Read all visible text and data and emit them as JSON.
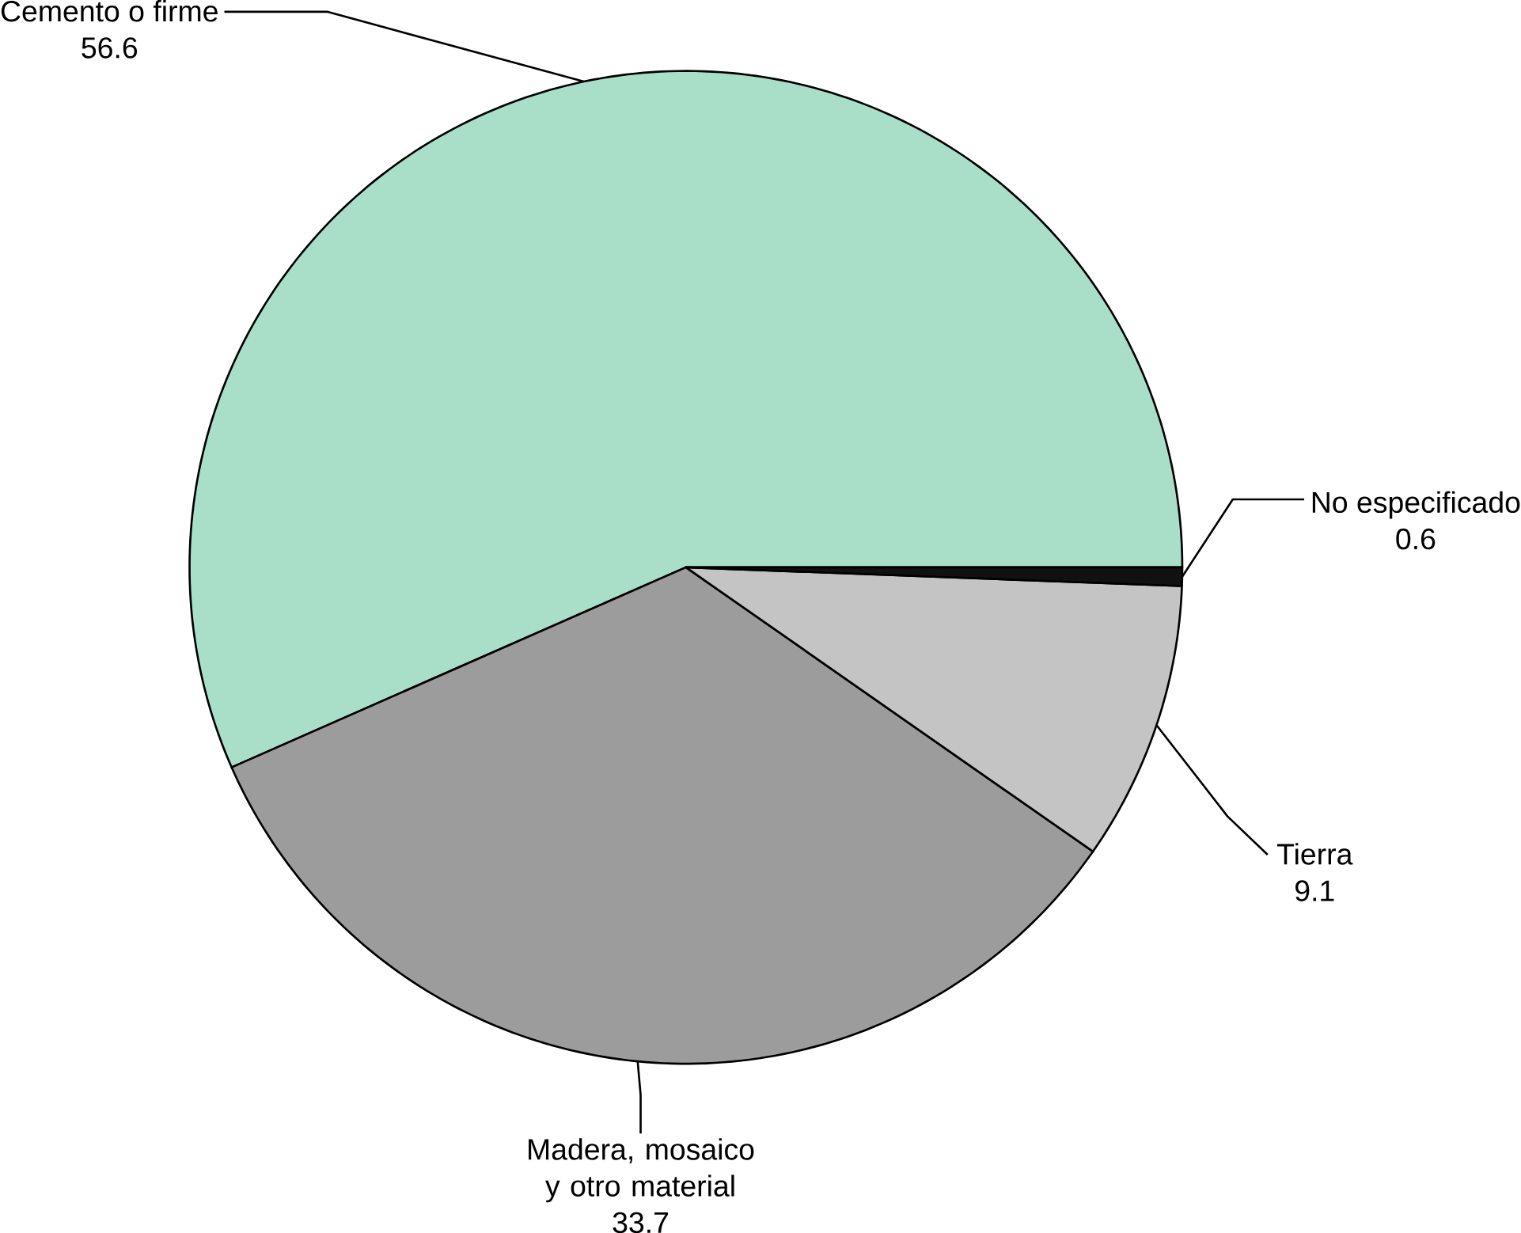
{
  "chart_data": {
    "type": "pie",
    "categories": [
      "Cemento o firme",
      "Madera, mosaico y otro material",
      "Tierra",
      "No especificado"
    ],
    "values": [
      56.6,
      33.7,
      9.1,
      0.6
    ],
    "colors": [
      "#a9dfc8",
      "#9c9c9c",
      "#c4c4c4",
      "#111111"
    ],
    "data_labels": true
  }
}
